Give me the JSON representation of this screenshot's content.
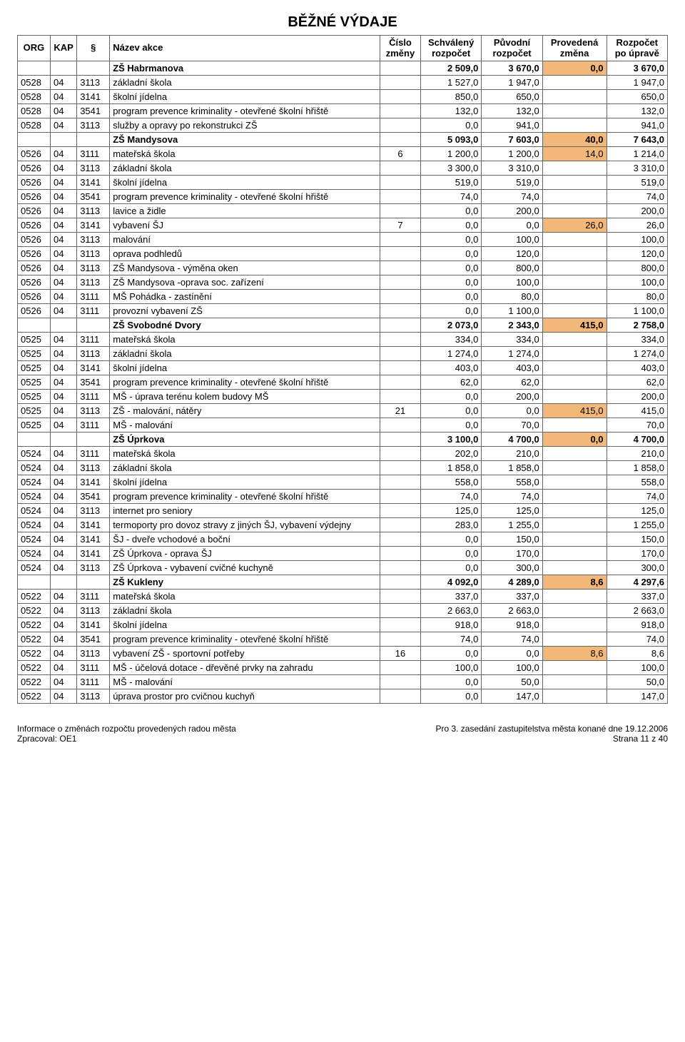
{
  "title": "BĚŽNÉ VÝDAJE",
  "headers": {
    "org": "ORG",
    "kap": "KAP",
    "par": "§",
    "nazev": "Název akce",
    "cislo": "Číslo\nzměny",
    "schval": "Schválený\nrozpočet",
    "puvod": "Původní\nrozpočet",
    "proved": "Provedená\nzměna",
    "rozpo": "Rozpočet\npo úpravě"
  },
  "footer": {
    "left1": "Informace o změnách rozpočtu provedených radou města",
    "left2": "Zpracoval: OE1",
    "right1": "Pro 3. zasedání zastupitelstva města konané dne 19.12.2006",
    "right2": "Strana 11 z 40"
  },
  "colors": {
    "highlight": "#f2b87a",
    "border": "#666666"
  },
  "rows": [
    {
      "type": "sum",
      "nazev": "ZŠ Habrmanova",
      "sch": "2 509,0",
      "puv": "3 670,0",
      "pro": "0,0",
      "roz": "3 670,0"
    },
    {
      "type": "det",
      "org": "0528",
      "kap": "04",
      "par": "3113",
      "nazev": "základní škola",
      "cis": "",
      "sch": "1 527,0",
      "puv": "1 947,0",
      "pro": "",
      "roz": "1 947,0"
    },
    {
      "type": "det",
      "org": "0528",
      "kap": "04",
      "par": "3141",
      "nazev": "školní jídelna",
      "cis": "",
      "sch": "850,0",
      "puv": "650,0",
      "pro": "",
      "roz": "650,0"
    },
    {
      "type": "det",
      "org": "0528",
      "kap": "04",
      "par": "3541",
      "nazev": "program prevence kriminality - otevřené školní hřiště",
      "cis": "",
      "sch": "132,0",
      "puv": "132,0",
      "pro": "",
      "roz": "132,0"
    },
    {
      "type": "det",
      "org": "0528",
      "kap": "04",
      "par": "3113",
      "nazev": "služby a opravy po rekonstrukci ZŠ",
      "cis": "",
      "sch": "0,0",
      "puv": "941,0",
      "pro": "",
      "roz": "941,0"
    },
    {
      "type": "sum",
      "nazev": "ZŠ Mandysova",
      "sch": "5 093,0",
      "puv": "7 603,0",
      "pro": "40,0",
      "roz": "7 643,0"
    },
    {
      "type": "det",
      "org": "0526",
      "kap": "04",
      "par": "3111",
      "nazev": "mateřská škola",
      "cis": "6",
      "sch": "1 200,0",
      "puv": "1 200,0",
      "pro": "14,0",
      "roz": "1 214,0"
    },
    {
      "type": "det",
      "org": "0526",
      "kap": "04",
      "par": "3113",
      "nazev": "základní škola",
      "cis": "",
      "sch": "3 300,0",
      "puv": "3 310,0",
      "pro": "",
      "roz": "3 310,0"
    },
    {
      "type": "det",
      "org": "0526",
      "kap": "04",
      "par": "3141",
      "nazev": "školní jídelna",
      "cis": "",
      "sch": "519,0",
      "puv": "519,0",
      "pro": "",
      "roz": "519,0"
    },
    {
      "type": "det",
      "org": "0526",
      "kap": "04",
      "par": "3541",
      "nazev": "program prevence kriminality - otevřené školní hřiště",
      "cis": "",
      "sch": "74,0",
      "puv": "74,0",
      "pro": "",
      "roz": "74,0"
    },
    {
      "type": "det",
      "org": "0526",
      "kap": "04",
      "par": "3113",
      "nazev": "lavice a židle",
      "cis": "",
      "sch": "0,0",
      "puv": "200,0",
      "pro": "",
      "roz": "200,0"
    },
    {
      "type": "det",
      "org": "0526",
      "kap": "04",
      "par": "3141",
      "nazev": "vybavení ŠJ",
      "cis": "7",
      "sch": "0,0",
      "puv": "0,0",
      "pro": "26,0",
      "roz": "26,0"
    },
    {
      "type": "det",
      "org": "0526",
      "kap": "04",
      "par": "3113",
      "nazev": "malování",
      "cis": "",
      "sch": "0,0",
      "puv": "100,0",
      "pro": "",
      "roz": "100,0"
    },
    {
      "type": "det",
      "org": "0526",
      "kap": "04",
      "par": "3113",
      "nazev": "oprava podhledů",
      "cis": "",
      "sch": "0,0",
      "puv": "120,0",
      "pro": "",
      "roz": "120,0"
    },
    {
      "type": "det",
      "org": "0526",
      "kap": "04",
      "par": "3113",
      "nazev": "ZŠ Mandysova - výměna oken",
      "cis": "",
      "sch": "0,0",
      "puv": "800,0",
      "pro": "",
      "roz": "800,0"
    },
    {
      "type": "det",
      "org": "0526",
      "kap": "04",
      "par": "3113",
      "nazev": "ZŠ Mandysova -oprava soc. zařízení",
      "cis": "",
      "sch": "0,0",
      "puv": "100,0",
      "pro": "",
      "roz": "100,0"
    },
    {
      "type": "det",
      "org": "0526",
      "kap": "04",
      "par": "3111",
      "nazev": "MŠ Pohádka - zastínění",
      "cis": "",
      "sch": "0,0",
      "puv": "80,0",
      "pro": "",
      "roz": "80,0"
    },
    {
      "type": "det",
      "org": "0526",
      "kap": "04",
      "par": "3111",
      "nazev": "provozní vybavení ZŠ",
      "cis": "",
      "sch": "0,0",
      "puv": "1 100,0",
      "pro": "",
      "roz": "1 100,0"
    },
    {
      "type": "sum",
      "nazev": "ZŠ Svobodné Dvory",
      "sch": "2 073,0",
      "puv": "2 343,0",
      "pro": "415,0",
      "roz": "2 758,0"
    },
    {
      "type": "det",
      "org": "0525",
      "kap": "04",
      "par": "3111",
      "nazev": "mateřská škola",
      "cis": "",
      "sch": "334,0",
      "puv": "334,0",
      "pro": "",
      "roz": "334,0"
    },
    {
      "type": "det",
      "org": "0525",
      "kap": "04",
      "par": "3113",
      "nazev": "základní škola",
      "cis": "",
      "sch": "1 274,0",
      "puv": "1 274,0",
      "pro": "",
      "roz": "1 274,0"
    },
    {
      "type": "det",
      "org": "0525",
      "kap": "04",
      "par": "3141",
      "nazev": "školní jídelna",
      "cis": "",
      "sch": "403,0",
      "puv": "403,0",
      "pro": "",
      "roz": "403,0"
    },
    {
      "type": "det",
      "org": "0525",
      "kap": "04",
      "par": "3541",
      "nazev": "program prevence kriminality - otevřené školní hřiště",
      "cis": "",
      "sch": "62,0",
      "puv": "62,0",
      "pro": "",
      "roz": "62,0"
    },
    {
      "type": "det",
      "org": "0525",
      "kap": "04",
      "par": "3111",
      "nazev": "MŠ - úprava terénu kolem budovy MŠ",
      "cis": "",
      "sch": "0,0",
      "puv": "200,0",
      "pro": "",
      "roz": "200,0"
    },
    {
      "type": "det",
      "org": "0525",
      "kap": "04",
      "par": "3113",
      "nazev": "ZŠ - malování, nátěry",
      "cis": "21",
      "sch": "0,0",
      "puv": "0,0",
      "pro": "415,0",
      "roz": "415,0"
    },
    {
      "type": "det",
      "org": "0525",
      "kap": "04",
      "par": "3111",
      "nazev": "MŠ - malování",
      "cis": "",
      "sch": "0,0",
      "puv": "70,0",
      "pro": "",
      "roz": "70,0"
    },
    {
      "type": "sum",
      "nazev": "ZŠ Úprkova",
      "sch": "3 100,0",
      "puv": "4 700,0",
      "pro": "0,0",
      "roz": "4 700,0"
    },
    {
      "type": "det",
      "org": "0524",
      "kap": "04",
      "par": "3111",
      "nazev": "mateřská škola",
      "cis": "",
      "sch": "202,0",
      "puv": "210,0",
      "pro": "",
      "roz": "210,0"
    },
    {
      "type": "det",
      "org": "0524",
      "kap": "04",
      "par": "3113",
      "nazev": "základní škola",
      "cis": "",
      "sch": "1 858,0",
      "puv": "1 858,0",
      "pro": "",
      "roz": "1 858,0"
    },
    {
      "type": "det",
      "org": "0524",
      "kap": "04",
      "par": "3141",
      "nazev": "školní jídelna",
      "cis": "",
      "sch": "558,0",
      "puv": "558,0",
      "pro": "",
      "roz": "558,0"
    },
    {
      "type": "det",
      "org": "0524",
      "kap": "04",
      "par": "3541",
      "nazev": "program prevence kriminality  - otevřené školní hřiště",
      "cis": "",
      "sch": "74,0",
      "puv": "74,0",
      "pro": "",
      "roz": "74,0"
    },
    {
      "type": "det",
      "org": "0524",
      "kap": "04",
      "par": "3113",
      "nazev": "internet pro seniory",
      "cis": "",
      "sch": "125,0",
      "puv": "125,0",
      "pro": "",
      "roz": "125,0"
    },
    {
      "type": "det",
      "org": "0524",
      "kap": "04",
      "par": "3141",
      "nazev": "termoporty pro dovoz stravy z jiných ŠJ, vybavení výdejny",
      "cis": "",
      "sch": "283,0",
      "puv": "1 255,0",
      "pro": "",
      "roz": "1 255,0"
    },
    {
      "type": "det",
      "org": "0524",
      "kap": "04",
      "par": "3141",
      "nazev": "ŠJ - dveře vchodové a boční",
      "cis": "",
      "sch": "0,0",
      "puv": "150,0",
      "pro": "",
      "roz": "150,0"
    },
    {
      "type": "det",
      "org": "0524",
      "kap": "04",
      "par": "3141",
      "nazev": "ZŠ Úprkova - oprava ŠJ",
      "cis": "",
      "sch": "0,0",
      "puv": "170,0",
      "pro": "",
      "roz": "170,0"
    },
    {
      "type": "det",
      "org": "0524",
      "kap": "04",
      "par": "3113",
      "nazev": "ZŠ Úprkova - vybavení cvičné kuchyně",
      "cis": "",
      "sch": "0,0",
      "puv": "300,0",
      "pro": "",
      "roz": "300,0"
    },
    {
      "type": "sum",
      "nazev": "ZŠ Kukleny",
      "sch": "4 092,0",
      "puv": "4 289,0",
      "pro": "8,6",
      "roz": "4 297,6"
    },
    {
      "type": "det",
      "org": "0522",
      "kap": "04",
      "par": "3111",
      "nazev": "mateřská škola",
      "cis": "",
      "sch": "337,0",
      "puv": "337,0",
      "pro": "",
      "roz": "337,0"
    },
    {
      "type": "det",
      "org": "0522",
      "kap": "04",
      "par": "3113",
      "nazev": "základní škola",
      "cis": "",
      "sch": "2 663,0",
      "puv": "2 663,0",
      "pro": "",
      "roz": "2 663,0"
    },
    {
      "type": "det",
      "org": "0522",
      "kap": "04",
      "par": "3141",
      "nazev": "školní jídelna",
      "cis": "",
      "sch": "918,0",
      "puv": "918,0",
      "pro": "",
      "roz": "918,0"
    },
    {
      "type": "det",
      "org": "0522",
      "kap": "04",
      "par": "3541",
      "nazev": "program prevence kriminality - otevřené školní hřiště",
      "cis": "",
      "sch": "74,0",
      "puv": "74,0",
      "pro": "",
      "roz": "74,0"
    },
    {
      "type": "det",
      "org": "0522",
      "kap": "04",
      "par": "3113",
      "nazev": "vybavení ZŠ - sportovní potřeby",
      "cis": "16",
      "sch": "0,0",
      "puv": "0,0",
      "pro": "8,6",
      "roz": "8,6"
    },
    {
      "type": "det",
      "org": "0522",
      "kap": "04",
      "par": "3111",
      "nazev": "MŠ - účelová dotace - dřevěné prvky na zahradu",
      "cis": "",
      "sch": "100,0",
      "puv": "100,0",
      "pro": "",
      "roz": "100,0"
    },
    {
      "type": "det",
      "org": "0522",
      "kap": "04",
      "par": "3111",
      "nazev": "MŠ - malování",
      "cis": "",
      "sch": "0,0",
      "puv": "50,0",
      "pro": "",
      "roz": "50,0"
    },
    {
      "type": "det",
      "org": "0522",
      "kap": "04",
      "par": "3113",
      "nazev": "úprava prostor pro cvičnou kuchyň",
      "cis": "",
      "sch": "0,0",
      "puv": "147,0",
      "pro": "",
      "roz": "147,0"
    }
  ]
}
